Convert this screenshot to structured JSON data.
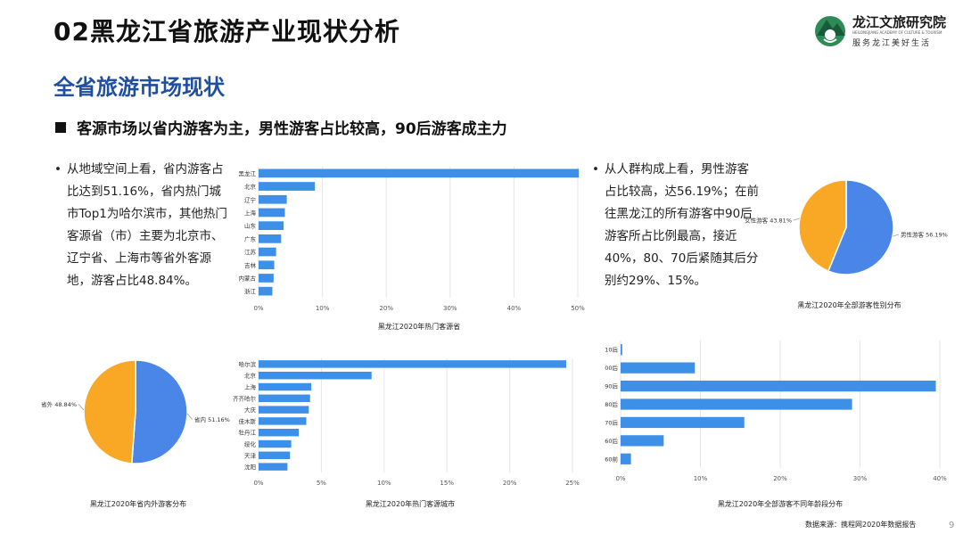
{
  "page": {
    "title": "02黑龙江省旅游产业现状分析",
    "section": "全省旅游市场现状",
    "headline": "客源市场以省内游客为主，男性游客占比较高，90后游客成主力",
    "page_number": "9",
    "source_note": "数据来源：携程网2020年数据报告"
  },
  "logo": {
    "name": "龙江文旅研究院",
    "english": "HEILONGJIANG ACADEMY OF CULTURE & TOURISM",
    "slogan": "服务龙江美好生活",
    "colors": {
      "green": "#2e8b57",
      "dark": "#1a5a3a"
    }
  },
  "text": {
    "left_paragraph": "从地域空间上看，省内游客占比达到51.16%，省内热门城市Top1为哈尔滨市，其他热门客源省（市）主要为北京市、辽宁省、上海市等省外客源地，游客占比48.84%。",
    "right_paragraph": "从人群构成上看，男性游客占比较高，达56.19%；在前往黑龙江的所有游客中90后游客所占比例最高，接近40%，80、70后紧随其后分别约29%、15%。"
  },
  "colors": {
    "bar": "#3d8fe8",
    "blue_slice": "#4a86e8",
    "orange_slice": "#f9a825",
    "grid": "#e6e6e6"
  },
  "chart_data": [
    {
      "type": "bar",
      "orientation": "horizontal",
      "title": "黑龙江2020年热门客源省",
      "categories": [
        "黑龙江",
        "北京",
        "辽宁",
        "上海",
        "山东",
        "广东",
        "江苏",
        "吉林",
        "内蒙古",
        "浙江"
      ],
      "values": [
        51.16,
        9.0,
        4.5,
        4.2,
        4.0,
        3.6,
        2.8,
        2.5,
        2.4,
        2.2
      ],
      "x_ticks": [
        "0%",
        "10%",
        "20%",
        "30%",
        "40%",
        "50%"
      ],
      "xlim": [
        0,
        51
      ],
      "grid": true
    },
    {
      "type": "pie",
      "title": "黑龙江2020年全部游客性别分布",
      "slices": [
        {
          "label": "男性游客 56.19%",
          "value": 56.19,
          "color": "#4a86e8"
        },
        {
          "label": "女性游客 43.81%",
          "value": 43.81,
          "color": "#f9a825"
        }
      ]
    },
    {
      "type": "pie",
      "title": "黑龙江2020年省内外游客分布",
      "slices": [
        {
          "label": "省内 51.16%",
          "value": 51.16,
          "color": "#4a86e8"
        },
        {
          "label": "省外 48.84%",
          "value": 48.84,
          "color": "#f9a825"
        }
      ]
    },
    {
      "type": "bar",
      "orientation": "horizontal",
      "title": "黑龙江2020年热门客源城市",
      "categories": [
        "哈尔滨",
        "北京",
        "上海",
        "齐齐哈尔",
        "大庆",
        "佳木斯",
        "牡丹江",
        "绥化",
        "天津",
        "沈阳"
      ],
      "values": [
        24.5,
        9.0,
        4.2,
        4.1,
        4.0,
        3.8,
        3.2,
        2.6,
        2.5,
        2.3
      ],
      "x_ticks": [
        "0%",
        "5%",
        "10%",
        "15%",
        "20%",
        "25%"
      ],
      "xlim": [
        0,
        25
      ],
      "grid": true
    },
    {
      "type": "bar",
      "orientation": "horizontal",
      "title": "黑龙江2020年全部游客不同年龄段分布",
      "categories": [
        "10后",
        "00后",
        "90后",
        "80后",
        "70后",
        "60后",
        "60前"
      ],
      "values": [
        0.2,
        9.3,
        39.5,
        29.0,
        15.5,
        5.4,
        1.3
      ],
      "x_ticks": [
        "0%",
        "10%",
        "20%",
        "30%",
        "40%"
      ],
      "xlim": [
        0,
        40
      ],
      "grid": true
    }
  ]
}
